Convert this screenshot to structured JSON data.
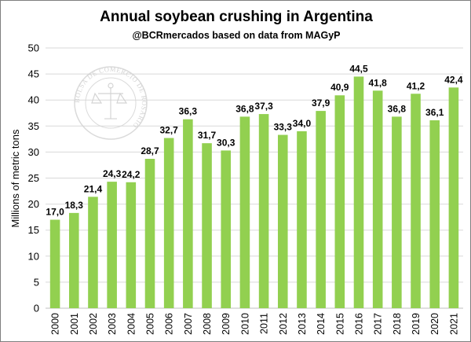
{
  "chart_data": {
    "type": "bar",
    "title": "Annual soybean crushing in Argentina",
    "subtitle": "@BCRmercados based on data from MAGyP",
    "xlabel": "",
    "ylabel": "Millions of metric tons",
    "ylim": [
      0,
      50
    ],
    "yticks": [
      0,
      5,
      10,
      15,
      20,
      25,
      30,
      35,
      40,
      45,
      50
    ],
    "grid": true,
    "legend": "none",
    "bar_color": "#92d050",
    "categories": [
      "2000",
      "2001",
      "2002",
      "2003",
      "2004",
      "2005",
      "2006",
      "2007",
      "2008",
      "2009",
      "2010",
      "2011",
      "2012",
      "2013",
      "2014",
      "2015",
      "2016",
      "2017",
      "2018",
      "2019",
      "2020",
      "2021"
    ],
    "values": [
      17.0,
      18.3,
      21.4,
      24.3,
      24.2,
      28.7,
      32.7,
      36.3,
      31.7,
      30.3,
      36.8,
      37.3,
      33.3,
      34.0,
      37.9,
      40.9,
      44.5,
      41.8,
      36.8,
      41.2,
      36.1,
      42.4
    ],
    "data_labels": [
      "17,0",
      "18,3",
      "21,4",
      "24,3",
      "24,2",
      "28,7",
      "32,7",
      "36,3",
      "31,7",
      "30,3",
      "36,8",
      "37,3",
      "33,3",
      "34,0",
      "37,9",
      "40,9",
      "44,5",
      "41,8",
      "36,8",
      "41,2",
      "36,1",
      "42,4"
    ]
  },
  "watermark": {
    "text": "BOLSA DE COMERCIO DE ROSARIO",
    "icon": "scales-of-justice-icon",
    "color": "#cfcfcf"
  }
}
